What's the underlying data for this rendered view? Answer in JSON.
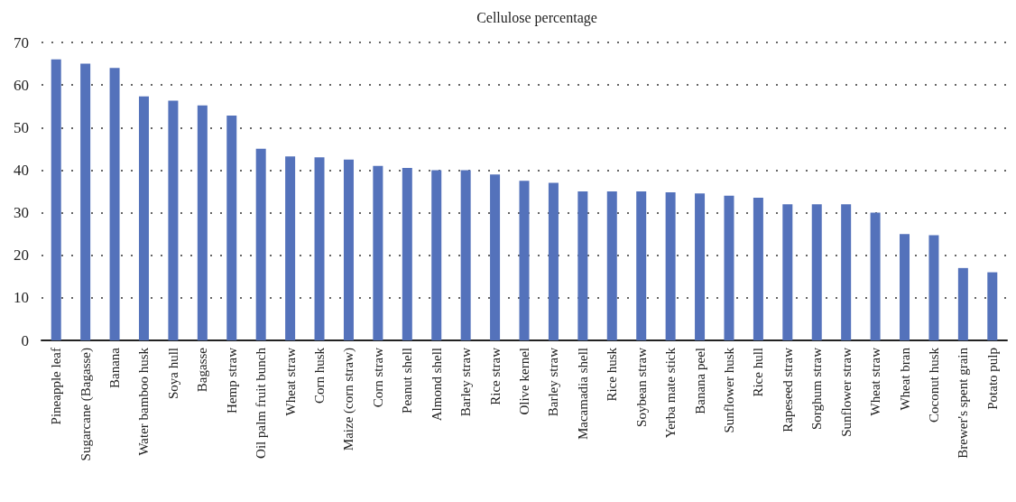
{
  "chart_data": {
    "type": "bar",
    "title": "Cellulose percentage",
    "categories": [
      "Pineapple leaf",
      "Sugarcane (Bagasse)",
      "Banana",
      "Water bamboo husk",
      "Soya hull",
      "Bagasse",
      "Hemp straw",
      "Oil palm fruit bunch",
      "Wheat straw",
      "Corn husk",
      "Maize (corn straw)",
      "Corn straw",
      "Peanut shell",
      "Almond shell",
      "Barley straw",
      "Rice straw",
      "Olive kernel",
      "Barley straw",
      "Macamadia shell",
      "Rice husk",
      "Soybean straw",
      "Yerba mate stick",
      "Banana peel",
      "Sunflower husk",
      "Rice hull",
      "Rapeseed straw",
      "Sorghum straw",
      "Sunflower straw",
      "Wheat straw",
      "Wheat bran",
      "Coconut husk",
      "Brewer's spent grain",
      "Potato pulp"
    ],
    "values": [
      66,
      65,
      64,
      57.3,
      56.3,
      55.2,
      52.8,
      45,
      43.2,
      43,
      42.5,
      41,
      40.5,
      40,
      40,
      39,
      37.5,
      37,
      35,
      35,
      35,
      34.8,
      34.5,
      34,
      33.5,
      32,
      32,
      32,
      30,
      25,
      24.7,
      17,
      16
    ],
    "color": "#5472bb",
    "ylim": [
      0,
      70
    ],
    "yticks": [
      0,
      10,
      20,
      30,
      40,
      50,
      60,
      70
    ],
    "grid": "y"
  }
}
